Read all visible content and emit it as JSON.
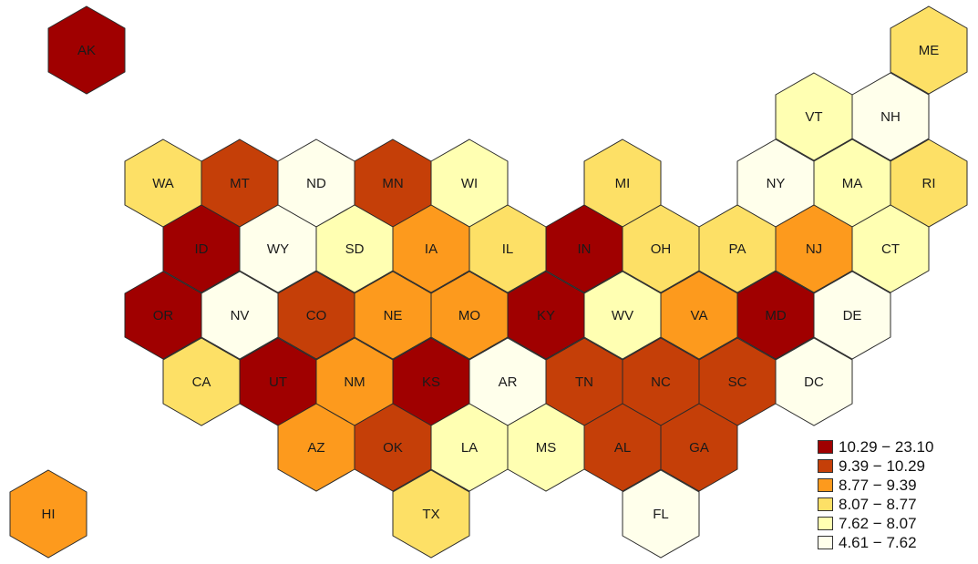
{
  "palette": [
    "#FFFFEB",
    "#FFFFB2",
    "#FDE066",
    "#FD9A1D",
    "#C53F08",
    "#A00000"
  ],
  "legend": [
    {
      "label": "10.29 − 23.10",
      "class": 5
    },
    {
      "label": "9.39 − 10.29",
      "class": 4
    },
    {
      "label": "8.77 − 9.39",
      "class": 3
    },
    {
      "label": "8.07 − 8.77",
      "class": 2
    },
    {
      "label": "7.62 − 8.07",
      "class": 1
    },
    {
      "label": "4.61 − 7.62",
      "class": 0
    }
  ],
  "states": [
    {
      "abbr": "AK",
      "class": 5
    },
    {
      "abbr": "ME",
      "class": 2
    },
    {
      "abbr": "VT",
      "class": 1
    },
    {
      "abbr": "NH",
      "class": 0
    },
    {
      "abbr": "WA",
      "class": 2
    },
    {
      "abbr": "MT",
      "class": 4
    },
    {
      "abbr": "ND",
      "class": 0
    },
    {
      "abbr": "MN",
      "class": 4
    },
    {
      "abbr": "WI",
      "class": 1
    },
    {
      "abbr": "MI",
      "class": 2
    },
    {
      "abbr": "NY",
      "class": 0
    },
    {
      "abbr": "MA",
      "class": 1
    },
    {
      "abbr": "RI",
      "class": 2
    },
    {
      "abbr": "ID",
      "class": 5
    },
    {
      "abbr": "WY",
      "class": 0
    },
    {
      "abbr": "SD",
      "class": 1
    },
    {
      "abbr": "IA",
      "class": 3
    },
    {
      "abbr": "IL",
      "class": 2
    },
    {
      "abbr": "IN",
      "class": 5
    },
    {
      "abbr": "OH",
      "class": 2
    },
    {
      "abbr": "PA",
      "class": 2
    },
    {
      "abbr": "NJ",
      "class": 3
    },
    {
      "abbr": "CT",
      "class": 1
    },
    {
      "abbr": "OR",
      "class": 5
    },
    {
      "abbr": "NV",
      "class": 0
    },
    {
      "abbr": "CO",
      "class": 4
    },
    {
      "abbr": "NE",
      "class": 3
    },
    {
      "abbr": "MO",
      "class": 3
    },
    {
      "abbr": "KY",
      "class": 5
    },
    {
      "abbr": "WV",
      "class": 1
    },
    {
      "abbr": "VA",
      "class": 3
    },
    {
      "abbr": "MD",
      "class": 5
    },
    {
      "abbr": "DE",
      "class": 0
    },
    {
      "abbr": "CA",
      "class": 2
    },
    {
      "abbr": "UT",
      "class": 5
    },
    {
      "abbr": "NM",
      "class": 3
    },
    {
      "abbr": "KS",
      "class": 5
    },
    {
      "abbr": "AR",
      "class": 0
    },
    {
      "abbr": "TN",
      "class": 4
    },
    {
      "abbr": "NC",
      "class": 4
    },
    {
      "abbr": "SC",
      "class": 4
    },
    {
      "abbr": "DC",
      "class": 0
    },
    {
      "abbr": "AZ",
      "class": 3
    },
    {
      "abbr": "OK",
      "class": 4
    },
    {
      "abbr": "LA",
      "class": 1
    },
    {
      "abbr": "MS",
      "class": 1
    },
    {
      "abbr": "AL",
      "class": 4
    },
    {
      "abbr": "GA",
      "class": 4
    },
    {
      "abbr": "HI",
      "class": 3
    },
    {
      "abbr": "TX",
      "class": 2
    },
    {
      "abbr": "FL",
      "class": 0
    }
  ]
}
